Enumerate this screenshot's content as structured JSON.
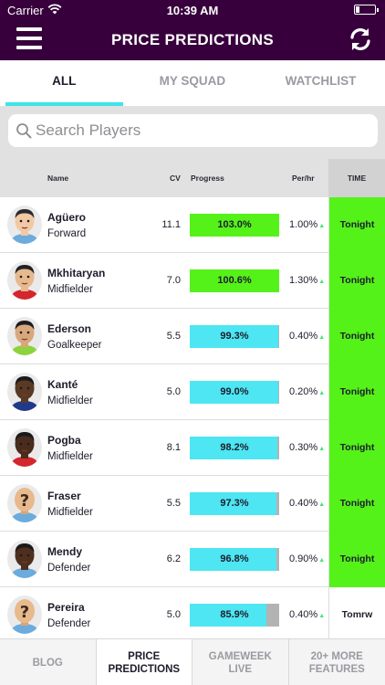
{
  "status": {
    "carrier": "Carrier",
    "time": "10:39 AM"
  },
  "header": {
    "title": "PRICE PREDICTIONS",
    "menu_icon": "menu-icon",
    "refresh_icon": "refresh-icon"
  },
  "tabs": [
    {
      "label": "ALL",
      "active": true
    },
    {
      "label": "MY SQUAD",
      "active": false
    },
    {
      "label": "WATCHLIST",
      "active": false
    }
  ],
  "search": {
    "placeholder": "Search Players",
    "value": ""
  },
  "columns": {
    "name": "Name",
    "cv": "CV",
    "progress": "Progress",
    "rate": "Per/hr",
    "time": "TIME"
  },
  "colors": {
    "brand": "#37003c",
    "accent": "#3ee4e8",
    "over_target": "#55f21a",
    "under_target": "#4de6f2",
    "remaining": "#b3b3b3",
    "tonight_bg": "#55f21a"
  },
  "players": [
    {
      "name": "Agüero",
      "position": "Forward",
      "cv": "11.1",
      "progress": 1.03,
      "progress_label": "103.0%",
      "rate": "1.00%",
      "time": "Tonight",
      "avatar": "face-avatar"
    },
    {
      "name": "Mkhitaryan",
      "position": "Midfielder",
      "cv": "7.0",
      "progress": 1.006,
      "progress_label": "100.6%",
      "rate": "1.30%",
      "time": "Tonight",
      "avatar": "face-avatar"
    },
    {
      "name": "Ederson",
      "position": "Goalkeeper",
      "cv": "5.5",
      "progress": 0.993,
      "progress_label": "99.3%",
      "rate": "0.40%",
      "time": "Tonight",
      "avatar": "face-avatar"
    },
    {
      "name": "Kanté",
      "position": "Midfielder",
      "cv": "5.0",
      "progress": 0.99,
      "progress_label": "99.0%",
      "rate": "0.20%",
      "time": "Tonight",
      "avatar": "face-avatar"
    },
    {
      "name": "Pogba",
      "position": "Midfielder",
      "cv": "8.1",
      "progress": 0.982,
      "progress_label": "98.2%",
      "rate": "0.30%",
      "time": "Tonight",
      "avatar": "face-avatar"
    },
    {
      "name": "Fraser",
      "position": "Midfielder",
      "cv": "5.5",
      "progress": 0.973,
      "progress_label": "97.3%",
      "rate": "0.40%",
      "time": "Tonight",
      "avatar": "unknown-player-avatar"
    },
    {
      "name": "Mendy",
      "position": "Defender",
      "cv": "6.2",
      "progress": 0.968,
      "progress_label": "96.8%",
      "rate": "0.90%",
      "time": "Tonight",
      "avatar": "face-avatar"
    },
    {
      "name": "Pereira",
      "position": "Defender",
      "cv": "5.0",
      "progress": 0.859,
      "progress_label": "85.9%",
      "rate": "0.40%",
      "time": "Tomrw",
      "avatar": "unknown-player-avatar"
    }
  ],
  "bottom_nav": [
    {
      "label": "BLOG",
      "active": false
    },
    {
      "label": "PRICE PREDICTIONS",
      "active": true
    },
    {
      "label": "GAMEWEEK LIVE",
      "active": false
    },
    {
      "label": "20+ MORE FEATURES",
      "active": false
    }
  ]
}
